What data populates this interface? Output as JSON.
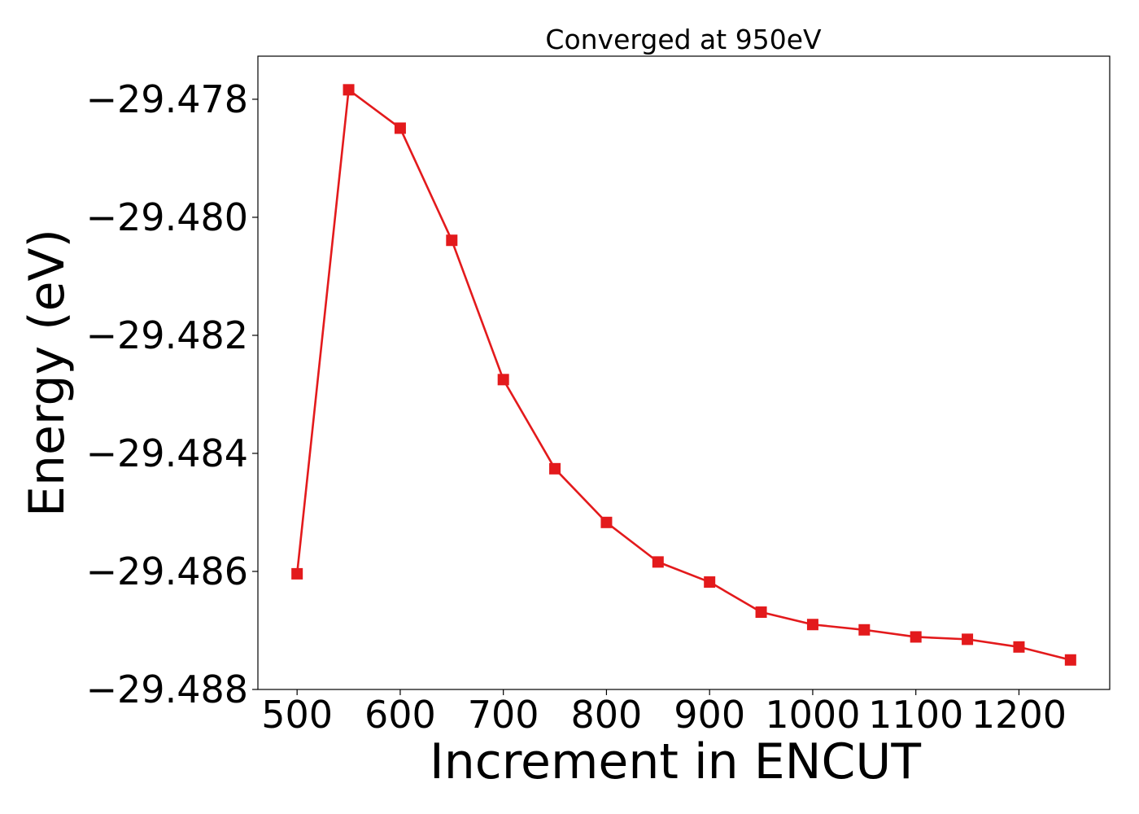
{
  "chart_data": {
    "type": "line",
    "title": "Converged at 950eV",
    "xlabel": "Increment in ENCUT",
    "ylabel": "Energy (eV)",
    "x": [
      500,
      550,
      600,
      650,
      700,
      750,
      800,
      850,
      900,
      950,
      1000,
      1050,
      1100,
      1150,
      1200,
      1250
    ],
    "series": [
      {
        "values": [
          -29.48604,
          -29.47784,
          -29.47849,
          -29.48039,
          -29.48275,
          -29.48426,
          -29.48517,
          -29.48584,
          -29.48618,
          -29.48669,
          -29.4869,
          -29.48699,
          -29.48711,
          -29.48715,
          -29.48728,
          -29.4875
        ],
        "color": "#e31a1c",
        "marker": "square"
      }
    ],
    "xlim": [
      462,
      1288
    ],
    "ylim": [
      -29.488,
      -29.47727
    ],
    "xticks": [
      500,
      600,
      700,
      800,
      900,
      1000,
      1100,
      1200
    ],
    "xtick_labels": [
      "500",
      "600",
      "700",
      "800",
      "900",
      "1000",
      "1100",
      "1200"
    ],
    "yticks": [
      -29.478,
      -29.48,
      -29.482,
      -29.484,
      -29.486,
      -29.488
    ],
    "ytick_labels": [
      "−29.478",
      "−29.480",
      "−29.482",
      "−29.484",
      "−29.486",
      "−29.488"
    ],
    "grid": false,
    "legend": false
  }
}
